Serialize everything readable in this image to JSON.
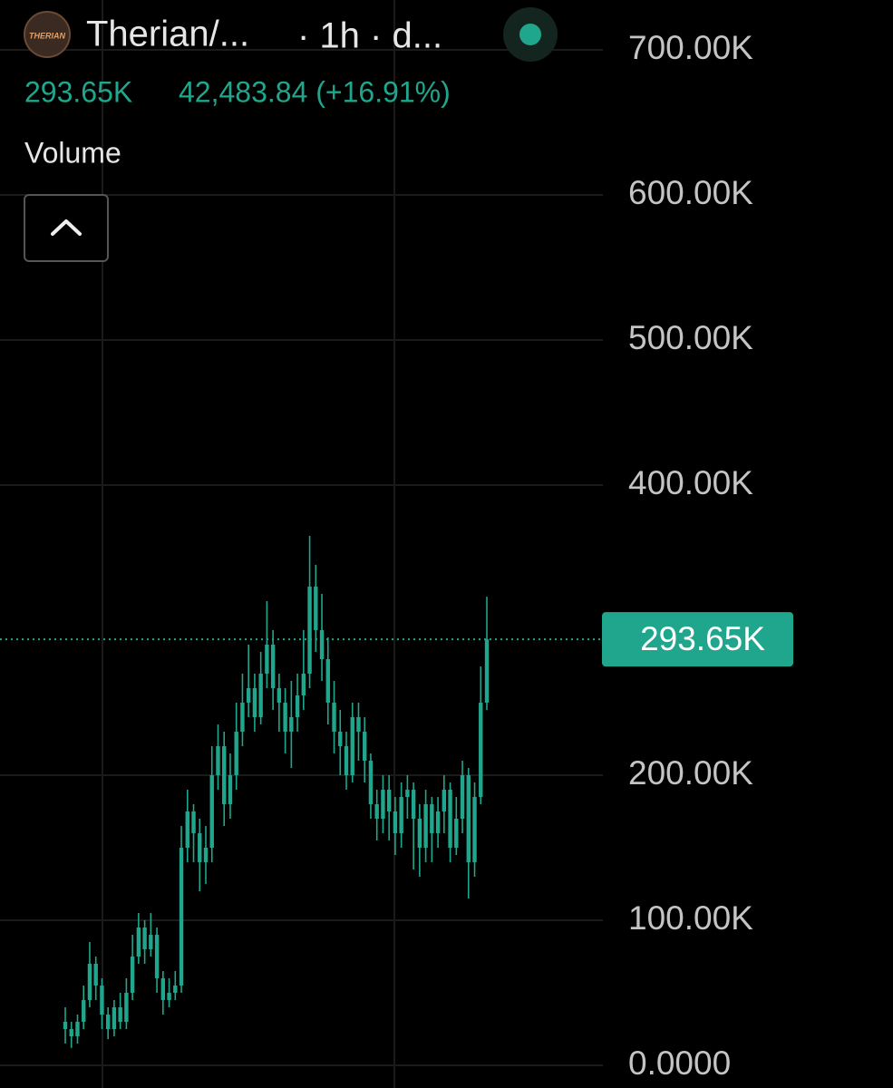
{
  "chart_data": {
    "type": "candlestick",
    "title": "Therian/...",
    "subtitle": "· 1h · d...",
    "last_price": {
      "value": 293650,
      "label": "293.65K"
    },
    "change_text": "42,483.84 (+16.91%)",
    "indicator": "Volume",
    "color": "#1fa68c",
    "grid": true,
    "ylim": [
      0,
      700000
    ],
    "yticks": [
      {
        "value": 0,
        "label": "0.0000"
      },
      {
        "value": 100000,
        "label": "100.00K"
      },
      {
        "value": 200000,
        "label": "200.00K"
      },
      {
        "value": 400000,
        "label": "400.00K"
      },
      {
        "value": 500000,
        "label": "500.00K"
      },
      {
        "value": 600000,
        "label": "600.00K"
      },
      {
        "value": 700000,
        "label": "700.00K"
      }
    ],
    "series": [
      {
        "open": [
          30000,
          25000,
          20000,
          30000,
          45000,
          70000,
          55000,
          35000,
          25000,
          40000,
          30000,
          50000,
          75000,
          95000,
          80000,
          90000,
          60000,
          45000,
          50000,
          55000,
          150000,
          175000,
          160000,
          140000,
          150000,
          200000,
          220000,
          180000,
          200000,
          230000,
          250000,
          260000,
          240000,
          270000,
          290000,
          260000,
          250000,
          230000,
          240000,
          255000,
          270000,
          330000,
          300000,
          280000,
          250000,
          230000,
          220000,
          200000,
          240000,
          230000,
          210000,
          180000,
          170000,
          190000,
          175000,
          160000,
          185000,
          190000,
          170000,
          150000,
          180000,
          160000,
          175000,
          190000,
          150000,
          170000,
          200000,
          140000,
          185000,
          250000
        ],
        "high": [
          40000,
          30000,
          35000,
          55000,
          85000,
          75000,
          60000,
          40000,
          45000,
          50000,
          60000,
          90000,
          105000,
          100000,
          105000,
          95000,
          65000,
          60000,
          65000,
          165000,
          190000,
          180000,
          170000,
          165000,
          220000,
          235000,
          230000,
          215000,
          250000,
          270000,
          290000,
          270000,
          285000,
          320000,
          300000,
          270000,
          260000,
          265000,
          270000,
          300000,
          365000,
          345000,
          325000,
          295000,
          265000,
          245000,
          230000,
          250000,
          250000,
          240000,
          215000,
          190000,
          200000,
          200000,
          185000,
          195000,
          200000,
          195000,
          180000,
          190000,
          185000,
          185000,
          200000,
          195000,
          185000,
          210000,
          205000,
          195000,
          275000,
          323000
        ],
        "low": [
          15000,
          12000,
          15000,
          25000,
          40000,
          45000,
          25000,
          18000,
          20000,
          25000,
          25000,
          45000,
          70000,
          70000,
          75000,
          50000,
          35000,
          40000,
          45000,
          50000,
          140000,
          140000,
          120000,
          125000,
          140000,
          190000,
          165000,
          170000,
          190000,
          220000,
          240000,
          230000,
          235000,
          260000,
          245000,
          230000,
          215000,
          205000,
          230000,
          245000,
          260000,
          285000,
          265000,
          235000,
          215000,
          200000,
          190000,
          195000,
          210000,
          195000,
          170000,
          155000,
          160000,
          155000,
          145000,
          150000,
          170000,
          135000,
          130000,
          140000,
          140000,
          150000,
          160000,
          140000,
          145000,
          160000,
          115000,
          130000,
          180000,
          245000
        ],
        "close": [
          25000,
          20000,
          30000,
          45000,
          70000,
          55000,
          35000,
          25000,
          40000,
          30000,
          50000,
          75000,
          95000,
          80000,
          90000,
          60000,
          45000,
          50000,
          55000,
          150000,
          175000,
          160000,
          140000,
          150000,
          200000,
          220000,
          180000,
          200000,
          230000,
          250000,
          260000,
          240000,
          270000,
          290000,
          260000,
          250000,
          230000,
          240000,
          255000,
          270000,
          330000,
          300000,
          280000,
          250000,
          230000,
          220000,
          200000,
          240000,
          230000,
          210000,
          180000,
          170000,
          190000,
          175000,
          160000,
          185000,
          190000,
          170000,
          150000,
          180000,
          160000,
          175000,
          190000,
          150000,
          170000,
          200000,
          140000,
          185000,
          250000,
          293650
        ]
      }
    ]
  }
}
